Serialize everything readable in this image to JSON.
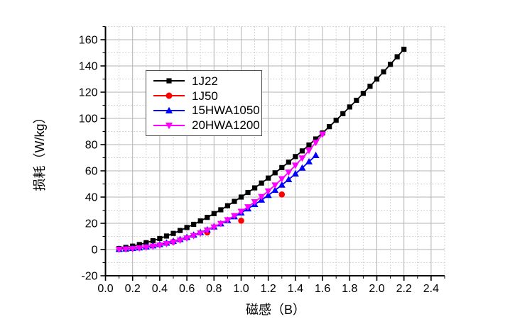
{
  "figure": {
    "background_color": "#ffffff",
    "plot_background_color": "#ffffff",
    "axis_color": "#000000",
    "major_grid_color": "#b3b3b3",
    "minor_grid_color": "#c9c9c9",
    "tick_label_color": "#000000"
  },
  "chart_data": {
    "type": "line",
    "title": "",
    "xlabel": "磁感（B）",
    "ylabel": "损耗（W/kg）",
    "xlim": [
      0,
      2.5
    ],
    "ylim": [
      -20,
      170
    ],
    "x_tick_values": [
      0,
      0.2,
      0.4,
      0.6,
      0.8,
      1.0,
      1.2,
      1.4,
      1.6,
      1.8,
      2.0,
      2.2,
      2.4
    ],
    "x_tick_labels": [
      "0.0",
      "0.2",
      "0.4",
      "0.6",
      "0.8",
      "1.0",
      "1.2",
      "1.4",
      "1.6",
      "1.8",
      "2.0",
      "2.2",
      "2.4"
    ],
    "x_minor_step": 0.1,
    "y_tick_values": [
      -20,
      0,
      20,
      40,
      60,
      80,
      100,
      120,
      140,
      160
    ],
    "y_tick_labels": [
      "-20",
      "0",
      "20",
      "40",
      "60",
      "80",
      "100",
      "120",
      "140",
      "160"
    ],
    "y_minor_step": 10,
    "grid": {
      "major": true,
      "minor": true,
      "minor_style": "dotted"
    },
    "legend": {
      "position": "upper-left-inside",
      "border": true
    },
    "series": [
      {
        "name": "1J22",
        "color": "#000000",
        "marker": "square",
        "line": true,
        "points": [
          [
            0.1,
            0.8
          ],
          [
            0.15,
            1.6
          ],
          [
            0.2,
            2.6
          ],
          [
            0.25,
            3.8
          ],
          [
            0.3,
            5.2
          ],
          [
            0.35,
            6.7
          ],
          [
            0.4,
            8.4
          ],
          [
            0.45,
            10.3
          ],
          [
            0.5,
            12.3
          ],
          [
            0.55,
            14.5
          ],
          [
            0.6,
            16.8
          ],
          [
            0.65,
            19.2
          ],
          [
            0.7,
            21.8
          ],
          [
            0.75,
            24.5
          ],
          [
            0.8,
            27.4
          ],
          [
            0.85,
            30.3
          ],
          [
            0.9,
            33.4
          ],
          [
            0.95,
            36.7
          ],
          [
            1.0,
            40
          ],
          [
            1.05,
            43.5
          ],
          [
            1.1,
            47
          ],
          [
            1.15,
            50.7
          ],
          [
            1.2,
            54.5
          ],
          [
            1.25,
            58.5
          ],
          [
            1.3,
            62.5
          ],
          [
            1.35,
            66.6
          ],
          [
            1.4,
            70.9
          ],
          [
            1.45,
            75.2
          ],
          [
            1.5,
            79.7
          ],
          [
            1.55,
            84.3
          ],
          [
            1.6,
            88.9
          ],
          [
            1.65,
            93.7
          ],
          [
            1.7,
            98.6
          ],
          [
            1.75,
            103.6
          ],
          [
            1.8,
            108.7
          ],
          [
            1.85,
            113.8
          ],
          [
            1.9,
            119.1
          ],
          [
            1.95,
            124.5
          ],
          [
            2.0,
            130
          ],
          [
            2.05,
            135.5
          ],
          [
            2.1,
            141.2
          ],
          [
            2.15,
            147
          ],
          [
            2.2,
            152.7
          ]
        ]
      },
      {
        "name": "1J50",
        "color": "#ff0000",
        "marker": "circle",
        "line": false,
        "points": [
          [
            0.5,
            6
          ],
          [
            0.75,
            13
          ],
          [
            1.0,
            22
          ],
          [
            1.3,
            42
          ]
        ]
      },
      {
        "name": "15HWA1050",
        "color": "#0000ff",
        "marker": "triangle-up",
        "line": true,
        "points": [
          [
            0.1,
            0.2
          ],
          [
            0.15,
            0.5
          ],
          [
            0.2,
            0.9
          ],
          [
            0.25,
            1.4
          ],
          [
            0.3,
            2.1
          ],
          [
            0.35,
            2.9
          ],
          [
            0.4,
            3.9
          ],
          [
            0.45,
            5
          ],
          [
            0.5,
            6.3
          ],
          [
            0.55,
            7.7
          ],
          [
            0.6,
            9.3
          ],
          [
            0.65,
            11.1
          ],
          [
            0.7,
            13
          ],
          [
            0.75,
            15.1
          ],
          [
            0.8,
            17.3
          ],
          [
            0.85,
            19.7
          ],
          [
            0.9,
            22.3
          ],
          [
            0.95,
            25.1
          ],
          [
            1.0,
            28
          ],
          [
            1.05,
            31.1
          ],
          [
            1.1,
            34.4
          ],
          [
            1.15,
            37.8
          ],
          [
            1.2,
            41.4
          ],
          [
            1.25,
            45.2
          ],
          [
            1.3,
            49.2
          ],
          [
            1.35,
            53.4
          ],
          [
            1.4,
            57.7
          ],
          [
            1.45,
            62.2
          ],
          [
            1.5,
            67
          ],
          [
            1.55,
            71.8
          ]
        ]
      },
      {
        "name": "20HWA1200",
        "color": "#ff00ff",
        "marker": "triangle-down",
        "line": true,
        "points": [
          [
            0.1,
            0.1
          ],
          [
            0.15,
            0.3
          ],
          [
            0.2,
            0.6
          ],
          [
            0.25,
            1.1
          ],
          [
            0.3,
            1.7
          ],
          [
            0.35,
            2.4
          ],
          [
            0.4,
            3.3
          ],
          [
            0.45,
            4.4
          ],
          [
            0.5,
            5.6
          ],
          [
            0.55,
            7.1
          ],
          [
            0.6,
            8.7
          ],
          [
            0.65,
            10.5
          ],
          [
            0.7,
            12.5
          ],
          [
            0.75,
            14.7
          ],
          [
            0.8,
            17.1
          ],
          [
            0.85,
            19.8
          ],
          [
            0.9,
            22.6
          ],
          [
            0.95,
            25.7
          ],
          [
            1.0,
            29
          ],
          [
            1.05,
            32.5
          ],
          [
            1.1,
            36.3
          ],
          [
            1.15,
            40.3
          ],
          [
            1.2,
            44.6
          ],
          [
            1.25,
            49.1
          ],
          [
            1.3,
            53.9
          ],
          [
            1.35,
            58.9
          ],
          [
            1.4,
            64.2
          ],
          [
            1.45,
            69.7
          ],
          [
            1.5,
            75.5
          ],
          [
            1.55,
            81.6
          ],
          [
            1.6,
            87.9
          ]
        ]
      }
    ]
  }
}
